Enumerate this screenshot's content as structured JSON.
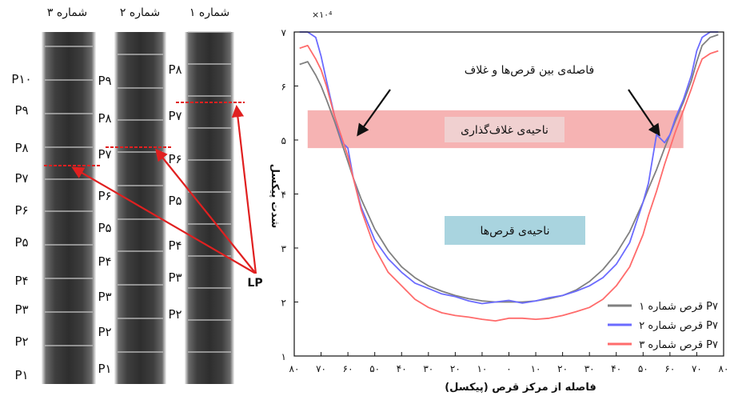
{
  "left_panel": {
    "column_titles": [
      "شماره ۳",
      "شماره ۲",
      "شماره ۱"
    ],
    "col3_labels": [
      "P۱۰",
      "P۹",
      "P۸",
      "P۷",
      "P۶",
      "P۵",
      "P۴",
      "P۳",
      "P۲",
      "P۱"
    ],
    "col2_labels": [
      "P۹",
      "P۸",
      "P۷",
      "P۶",
      "P۵",
      "P۴",
      "P۳",
      "P۲",
      "P۱"
    ],
    "col1_labels": [
      "P۸",
      "P۷",
      "P۶",
      "P۵",
      "P۴",
      "P۳",
      "P۲"
    ],
    "pointer_label": "LP"
  },
  "chart_data": {
    "type": "line",
    "exponent_label": "×۱۰⁴",
    "xlabel": "فاصله از مرکز قرص (پیکسل)",
    "ylabel": "شدت پیکسل",
    "xlim": [
      -80,
      80
    ],
    "ylim": [
      1,
      7
    ],
    "x_tick_values": [
      -80,
      -70,
      -60,
      -50,
      -40,
      -30,
      -20,
      -10,
      0,
      10,
      20,
      30,
      40,
      50,
      60,
      70,
      80
    ],
    "x_tick_labels": [
      "۸۰",
      "۷۰",
      "۶۰",
      "۵۰",
      "۴۰",
      "۳۰",
      "۲۰",
      "۱۰",
      "۰",
      "۱۰",
      "۲۰",
      "۳۰",
      "۴۰",
      "۵۰",
      "۶۰",
      "۷۰",
      "۸۰"
    ],
    "y_tick_values": [
      1,
      2,
      3,
      4,
      5,
      6,
      7
    ],
    "y_tick_labels": [
      "۱",
      "۲",
      "۳",
      "۴",
      "۵",
      "۶",
      "۷"
    ],
    "x": [
      -78,
      -75,
      -72,
      -70,
      -68,
      -65,
      -62,
      -60,
      -58,
      -55,
      -50,
      -45,
      -40,
      -35,
      -30,
      -25,
      -20,
      -15,
      -10,
      -5,
      0,
      5,
      10,
      15,
      20,
      25,
      30,
      35,
      40,
      45,
      50,
      52,
      55,
      58,
      60,
      62,
      65,
      68,
      70,
      72,
      75,
      78
    ],
    "series": [
      {
        "name": "قرص شماره ۱ P۷",
        "color": "#808080",
        "values": [
          6.4,
          6.45,
          6.2,
          6.0,
          5.75,
          5.35,
          4.9,
          4.6,
          4.3,
          3.9,
          3.35,
          2.95,
          2.65,
          2.45,
          2.3,
          2.2,
          2.12,
          2.06,
          2.02,
          2.0,
          2.0,
          2.0,
          2.02,
          2.06,
          2.12,
          2.22,
          2.38,
          2.6,
          2.9,
          3.3,
          3.85,
          4.1,
          4.45,
          4.85,
          5.1,
          5.35,
          5.7,
          6.1,
          6.45,
          6.75,
          6.9,
          6.95
        ]
      },
      {
        "name": "قرص شماره ۲ P۷",
        "color": "#6b6bff",
        "values": [
          7.0,
          7.0,
          6.9,
          6.55,
          6.1,
          5.45,
          4.95,
          4.85,
          4.3,
          3.75,
          3.15,
          2.8,
          2.55,
          2.35,
          2.25,
          2.15,
          2.1,
          2.02,
          1.97,
          2.0,
          2.03,
          1.98,
          2.02,
          2.08,
          2.12,
          2.2,
          2.3,
          2.45,
          2.7,
          3.1,
          3.85,
          4.2,
          5.1,
          4.95,
          5.1,
          5.4,
          5.75,
          6.2,
          6.65,
          6.9,
          7.0,
          7.0
        ]
      },
      {
        "name": "قرص شماره ۳ P۷",
        "color": "#ff6b6b",
        "values": [
          6.7,
          6.75,
          6.5,
          6.3,
          6.0,
          5.45,
          5.0,
          4.7,
          4.3,
          3.7,
          3.0,
          2.55,
          2.3,
          2.05,
          1.9,
          1.8,
          1.75,
          1.72,
          1.68,
          1.65,
          1.7,
          1.7,
          1.68,
          1.7,
          1.75,
          1.82,
          1.9,
          2.05,
          2.3,
          2.65,
          3.25,
          3.6,
          4.05,
          4.55,
          4.85,
          5.15,
          5.55,
          5.95,
          6.25,
          6.5,
          6.6,
          6.65
        ]
      }
    ],
    "shaded_band": {
      "label": "ناحیه‌ی غلاف‌گذاری",
      "x_range": [
        -75,
        65
      ],
      "y_range": [
        4.85,
        5.55
      ],
      "color": "#f4a6a6"
    },
    "annotations": {
      "gap_label": "فاصله‌ی بین قرص‌ها و غلاف",
      "tablets_region_label": "ناحیه‌ی قرص‌ها"
    },
    "legend_position": "bottom-right"
  }
}
